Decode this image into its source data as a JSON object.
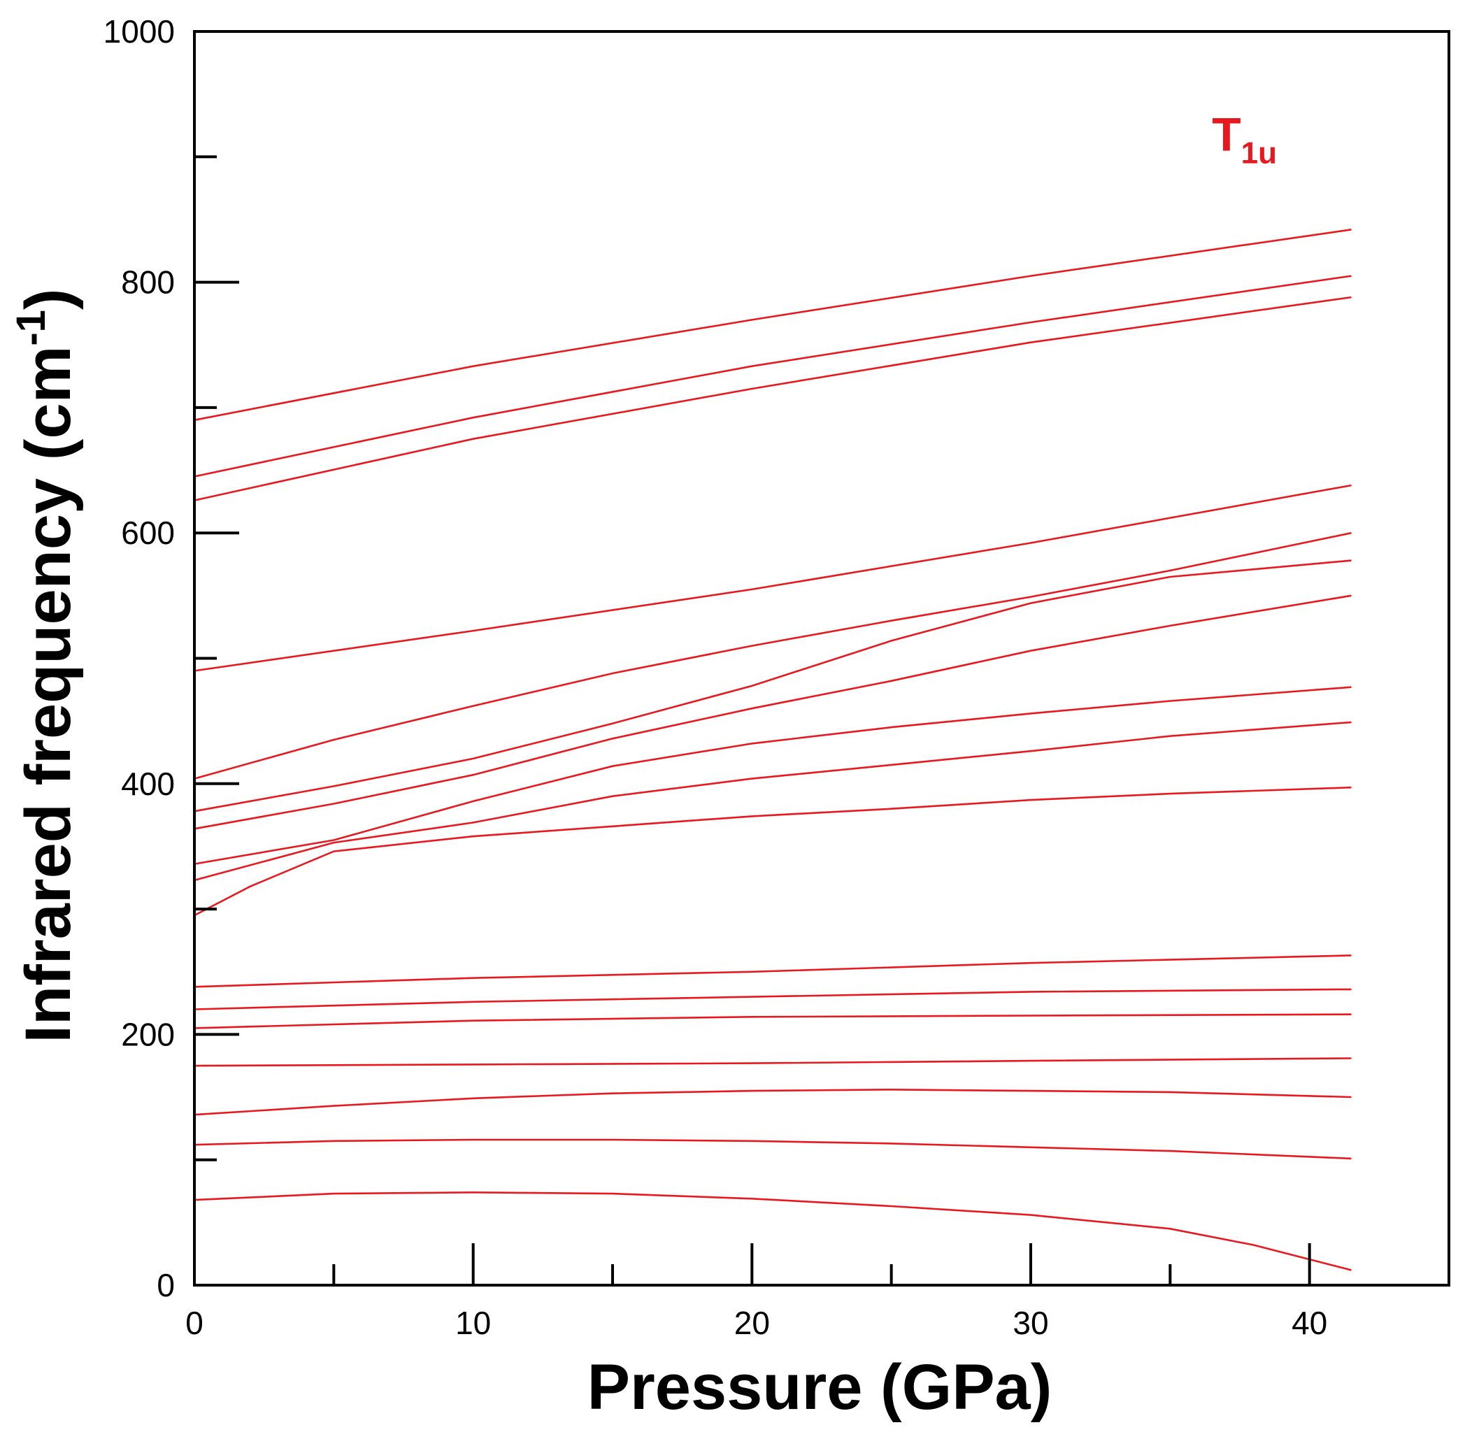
{
  "chart_data": {
    "type": "line",
    "title": "",
    "xlabel": "Pressure (GPa)",
    "ylabel_main": "Infrared frequency (cm",
    "ylabel_sup": "-1",
    "ylabel_tail": ")",
    "xlim": [
      0,
      45
    ],
    "ylim": [
      0,
      1000
    ],
    "x_major_ticks": [
      0,
      10,
      20,
      30,
      40
    ],
    "x_minor_ticks": [
      5,
      15,
      25,
      35
    ],
    "y_major_ticks": [
      0,
      200,
      400,
      600,
      800,
      1000
    ],
    "y_minor_ticks": [
      100,
      300,
      500,
      700,
      900
    ],
    "x_tick_labels": [
      "0",
      "10",
      "20",
      "30",
      "40"
    ],
    "y_tick_labels": [
      "0",
      "200",
      "400",
      "600",
      "800",
      "1000"
    ],
    "grid": false,
    "color": "#e8191e",
    "annotation": {
      "main": "T",
      "sub": "1u",
      "x": 36.5,
      "y": 905
    },
    "series": [
      {
        "x": [
          0,
          10,
          20,
          30,
          41.5
        ],
        "y": [
          690,
          733,
          770,
          805,
          842
        ]
      },
      {
        "x": [
          0,
          10,
          20,
          30,
          41.5
        ],
        "y": [
          645,
          692,
          733,
          768,
          805
        ]
      },
      {
        "x": [
          0,
          10,
          20,
          30,
          41.5
        ],
        "y": [
          626,
          675,
          715,
          752,
          788
        ]
      },
      {
        "x": [
          0,
          10,
          20,
          30,
          41.5
        ],
        "y": [
          490,
          522,
          555,
          592,
          638
        ]
      },
      {
        "x": [
          0,
          5,
          10,
          15,
          20,
          25,
          30,
          35,
          41.5
        ],
        "y": [
          404,
          435,
          462,
          488,
          510,
          530,
          549,
          570,
          600
        ]
      },
      {
        "x": [
          0,
          5,
          10,
          15,
          20,
          25,
          30,
          35,
          41.5
        ],
        "y": [
          378,
          398,
          420,
          448,
          478,
          514,
          544,
          565,
          578
        ]
      },
      {
        "x": [
          0,
          5,
          10,
          15,
          20,
          25,
          30,
          35,
          41.5
        ],
        "y": [
          364,
          384,
          407,
          436,
          460,
          482,
          506,
          526,
          550
        ]
      },
      {
        "x": [
          0,
          5,
          10,
          15,
          20,
          25,
          30,
          35,
          41.5
        ],
        "y": [
          336,
          355,
          386,
          414,
          432,
          445,
          456,
          466,
          477
        ]
      },
      {
        "x": [
          0,
          5,
          10,
          15,
          20,
          25,
          30,
          35,
          41.5
        ],
        "y": [
          323,
          353,
          369,
          390,
          404,
          415,
          426,
          438,
          449
        ]
      },
      {
        "x": [
          0,
          2,
          5,
          10,
          15,
          20,
          25,
          30,
          35,
          41.5
        ],
        "y": [
          295,
          318,
          346,
          358,
          366,
          374,
          380,
          387,
          392,
          397
        ]
      },
      {
        "x": [
          0,
          10,
          20,
          30,
          41.5
        ],
        "y": [
          238,
          245,
          250,
          257,
          263
        ]
      },
      {
        "x": [
          0,
          10,
          20,
          30,
          41.5
        ],
        "y": [
          220,
          226,
          230,
          234,
          236
        ]
      },
      {
        "x": [
          0,
          10,
          20,
          30,
          41.5
        ],
        "y": [
          205,
          211,
          214,
          215,
          216
        ]
      },
      {
        "x": [
          0,
          10,
          20,
          30,
          41.5
        ],
        "y": [
          175,
          176,
          177,
          179,
          181
        ]
      },
      {
        "x": [
          0,
          5,
          10,
          15,
          20,
          25,
          30,
          35,
          41.5
        ],
        "y": [
          136,
          143,
          149,
          153,
          155,
          156,
          155,
          154,
          150
        ]
      },
      {
        "x": [
          0,
          5,
          10,
          15,
          20,
          25,
          30,
          35,
          41.5
        ],
        "y": [
          112,
          115,
          116,
          116,
          115,
          113,
          110,
          107,
          101
        ]
      },
      {
        "x": [
          0,
          5,
          10,
          15,
          20,
          25,
          30,
          35,
          38,
          41.5
        ],
        "y": [
          68,
          73,
          74,
          73,
          69,
          63,
          56,
          45,
          32,
          12
        ]
      }
    ]
  }
}
